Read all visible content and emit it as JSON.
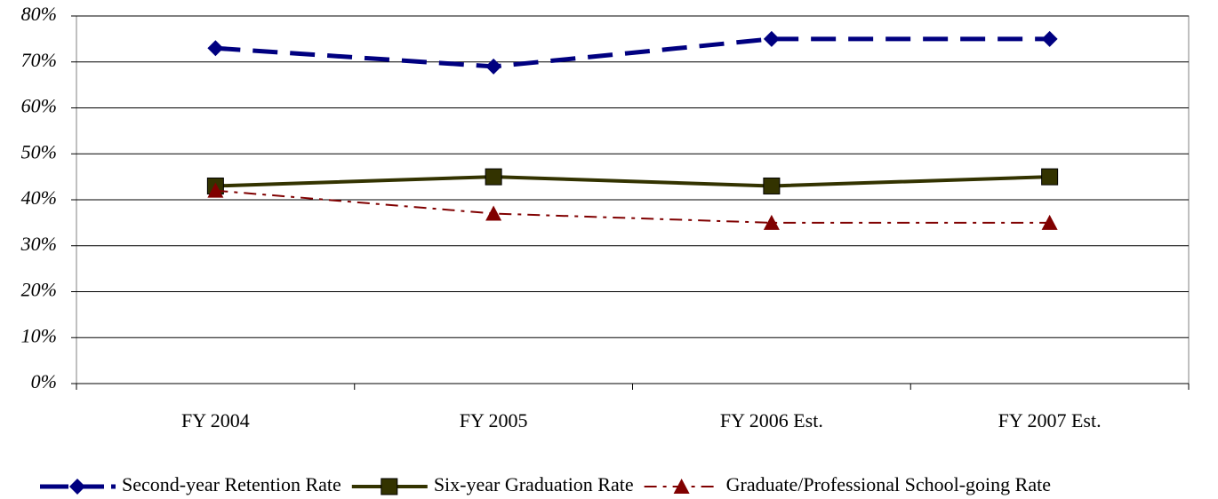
{
  "chart_data": {
    "type": "line",
    "categories": [
      "FY 2004",
      "FY 2005",
      "FY 2006 Est.",
      "FY 2007 Est."
    ],
    "series": [
      {
        "name": "Second-year Retention Rate",
        "color": "#000080",
        "dash": "dashed",
        "marker": "diamond",
        "values": [
          73,
          69,
          75,
          75
        ]
      },
      {
        "name": "Six-year Graduation Rate",
        "color": "#333300",
        "dash": "solid",
        "marker": "square",
        "values": [
          43,
          45,
          43,
          45
        ]
      },
      {
        "name": "Graduate/Professional School-going Rate",
        "color": "#800000",
        "dash": "dashdot",
        "marker": "triangle",
        "values": [
          42,
          37,
          35,
          35
        ]
      }
    ],
    "ylim": [
      0,
      80
    ],
    "yticks": [
      {
        "value": 0,
        "label": "0%"
      },
      {
        "value": 10,
        "label": "10%"
      },
      {
        "value": 20,
        "label": "20%"
      },
      {
        "value": 30,
        "label": "30%"
      },
      {
        "value": 40,
        "label": "40%"
      },
      {
        "value": 50,
        "label": "50%"
      },
      {
        "value": 60,
        "label": "60%"
      },
      {
        "value": 70,
        "label": "70%"
      },
      {
        "value": 80,
        "label": "80%"
      }
    ],
    "grid": true,
    "legend": "bottom"
  }
}
